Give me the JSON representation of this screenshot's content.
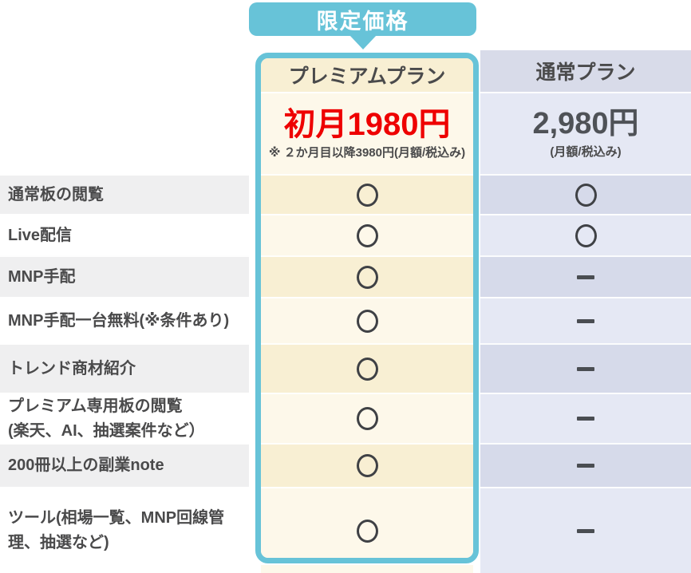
{
  "badge": {
    "label": "限定価格"
  },
  "columns": {
    "premium": {
      "name": "プレミアムプラン",
      "price": "初月1980円",
      "price_note": "※ ２か月目以降3980円(月額/税込み)"
    },
    "regular": {
      "name": "通常プラン",
      "price": "2,980円",
      "price_note": "(月額/税込み)"
    }
  },
  "mark_glyphs": {
    "circle": "○",
    "dash": "ー"
  },
  "colors": {
    "accent_teal": "#67c3d8",
    "premium_price_red": "#ee0000",
    "premium_row_dark": "#f8efd3",
    "premium_row_light": "#fdf8ea",
    "regular_row_dark": "#d6daea",
    "regular_row_light": "#e5e8f4",
    "label_row_gray": "#efeff0"
  },
  "rows": [
    {
      "label": "通常板の閲覧",
      "premium": "circle",
      "regular": "circle"
    },
    {
      "label": "Live配信",
      "premium": "circle",
      "regular": "circle"
    },
    {
      "label": "MNP手配",
      "premium": "circle",
      "regular": "dash"
    },
    {
      "label": "MNP手配一台無料(※条件あり)",
      "premium": "circle",
      "regular": "dash"
    },
    {
      "label": "トレンド商材紹介",
      "premium": "circle",
      "regular": "dash"
    },
    {
      "label": "プレミアム専用板の閲覧\n(楽天、AI、抽選案件など）",
      "premium": "circle",
      "regular": "dash"
    },
    {
      "label": "200冊以上の副業note",
      "premium": "circle",
      "regular": "dash"
    },
    {
      "label": "ツール(相場一覧、MNP回線管理、抽選など)",
      "premium": "circle",
      "regular": "dash"
    }
  ]
}
